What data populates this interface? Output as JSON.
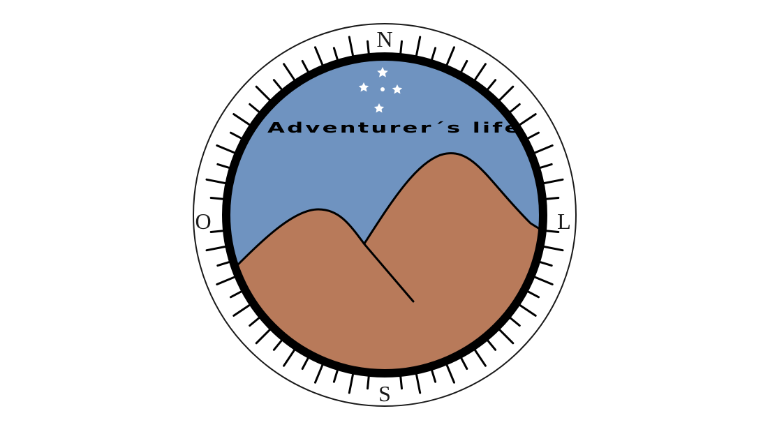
{
  "logo": {
    "title": "Adventurer´s life.",
    "colors": {
      "sky": "#6f93c0",
      "mountain": "#b87a5a",
      "ring": "#000000",
      "outer_ring": "#1a1a1a",
      "stars": "#ffffff",
      "background": "#ffffff"
    },
    "star_icon": "star-icon",
    "directions": {
      "north": "N",
      "south": "S",
      "west": "O",
      "east": "L"
    }
  }
}
